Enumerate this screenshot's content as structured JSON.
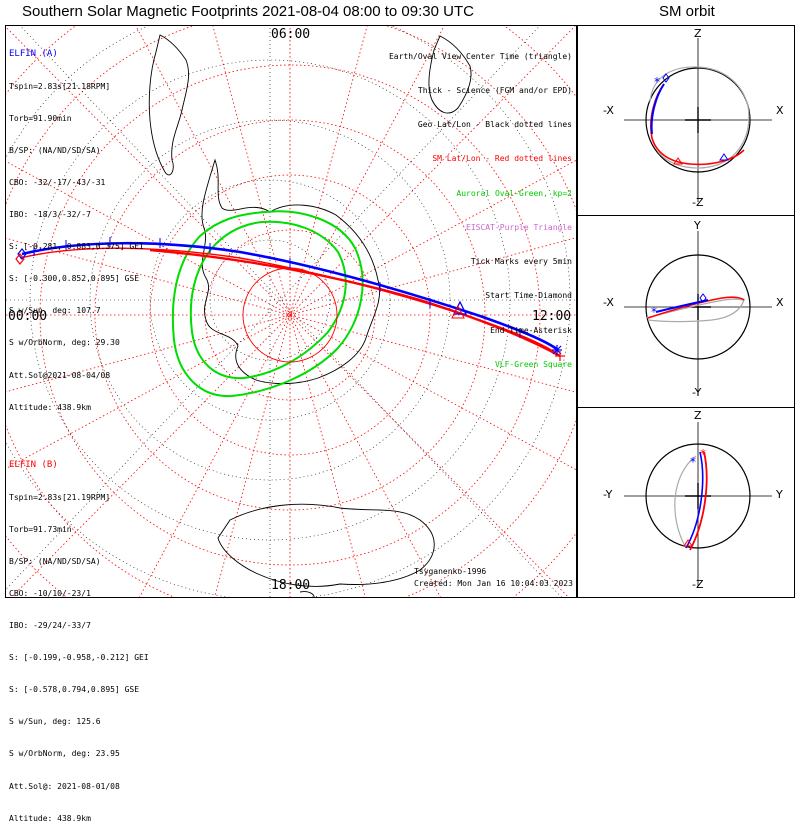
{
  "header": {
    "main_title": "Southern Solar Magnetic Footprints 2021-08-04 08:00 to 09:30 UTC",
    "orbit_title": "SM orbit"
  },
  "map": {
    "time_labels": {
      "top": "06:00",
      "left": "00:00",
      "right": "12:00",
      "bottom": "18:00"
    },
    "created": "Created: Mon Jan 16 10:04:03 2023",
    "model": "Tsyganenko-1996"
  },
  "legend": [
    {
      "text": "Earth/Oval View Center Time (triangle)",
      "color": "#000000"
    },
    {
      "text": "Thick - Science (FGM and/or EPD)",
      "color": "#000000"
    },
    {
      "text": "Geo Lat/Lon - Black dotted lines",
      "color": "#000000"
    },
    {
      "text": "SM Lat/Lon - Red dotted lines",
      "color": "#ff0000"
    },
    {
      "text": "Auroral Oval-Green, kp=2",
      "color": "#00cc00"
    },
    {
      "text": "EISCAT-Purple Triangle",
      "color": "#cc66cc"
    },
    {
      "text": "Tick Marks every 5min",
      "color": "#000000"
    },
    {
      "text": "Start Time-Diamond",
      "color": "#000000"
    },
    {
      "text": "End Time-Asterisk",
      "color": "#000000"
    },
    {
      "text": "VLF-Green Square",
      "color": "#00cc00"
    }
  ],
  "elfin_a": {
    "name": "ELFIN (A)",
    "color": "#0000ff",
    "lines": [
      "Tspin=2.83s[21.18RPM]",
      "Torb=91.90min",
      "B/SP: (NA/ND/SD/SA)",
      "CBO: -32/-17/-43/-31",
      "IBO: -18/3/-32/-7",
      "S: [-0.281,-0.883,0.375] GEI",
      "S: [-0.300,0.852,0.895] GSE",
      "S w/Sun, deg: 107.7",
      "S w/OrbNorm, deg: 29.30",
      "Att.Sol@2021-08-04/08",
      "Altitude: 438.9km"
    ]
  },
  "elfin_b": {
    "name": "ELFIN (B)",
    "color": "#ff0000",
    "lines": [
      "Tspin=2.83s[21.19RPM]",
      "Torb=91.73min",
      "B/SP: (NA/ND/SD/SA)",
      "CBO: -10/10/-23/1",
      "IBO: -29/24/-33/7",
      "S: [-0.199,-0.958,-0.212] GEI",
      "S: [-0.578,0.794,0.895] GSE",
      "S w/Sun, deg: 125.6",
      "S w/OrbNorm, deg: 23.95",
      "Att.Sol@: 2021-08-01/08",
      "Altitude: 438.9km"
    ]
  },
  "orbit_panels": [
    {
      "top": "Z",
      "bottom": "-Z",
      "left": "-X",
      "right": "X"
    },
    {
      "top": "Y",
      "bottom": "-Y",
      "left": "-X",
      "right": "X"
    },
    {
      "top": "Z",
      "bottom": "-Z",
      "left": "-Y",
      "right": "Y"
    }
  ],
  "colors": {
    "elfin_a": "#0000ff",
    "elfin_b": "#ff0000",
    "oval": "#00dd00",
    "geo_grid": "#000000",
    "sm_grid": "#ff0000"
  }
}
